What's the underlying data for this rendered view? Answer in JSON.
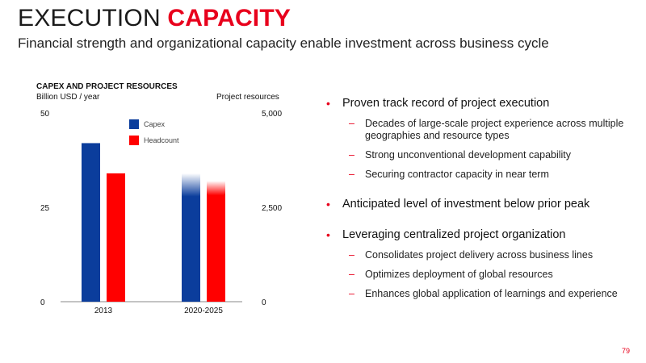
{
  "header": {
    "title_light": "EXECUTION ",
    "title_bold": "CAPACITY",
    "subtitle": "Financial strength and organizational capacity enable investment across business cycle"
  },
  "chart_data": {
    "type": "bar",
    "title": "CAPEX AND PROJECT RESOURCES",
    "ylabel": "Billion USD / year",
    "y2label": "Project resources",
    "categories": [
      "2013",
      "2020-2025"
    ],
    "ylim": [
      0,
      50
    ],
    "y2lim": [
      0,
      5000
    ],
    "yticks": [
      "0",
      "25",
      "50"
    ],
    "y2ticks": [
      "0",
      "2,500",
      "5,000"
    ],
    "series": [
      {
        "name": "Capex",
        "axis": "left",
        "color": "#0b3d9c",
        "values": [
          42,
          34
        ],
        "fade_top": [
          false,
          true
        ]
      },
      {
        "name": "Headcount",
        "axis": "right",
        "color": "#ff0000",
        "values": [
          3400,
          3200
        ],
        "fade_top": [
          false,
          true
        ]
      }
    ],
    "legend": "top-left"
  },
  "bullets": [
    {
      "text": "Proven track record of project execution",
      "subs": [
        "Decades of large-scale project experience across multiple geographies and resource types",
        "Strong unconventional development capability",
        "Securing contractor capacity in near term"
      ]
    },
    {
      "text": "Anticipated level of investment below prior peak",
      "subs": []
    },
    {
      "text": "Leveraging centralized project organization",
      "subs": [
        "Consolidates project delivery across business lines",
        "Optimizes deployment of global resources",
        "Enhances global application of learnings and experience"
      ]
    }
  ],
  "footer": {
    "page": "79"
  },
  "colors": {
    "accent": "#e8001c",
    "capex": "#0b3d9c",
    "headcount": "#ff0000"
  }
}
